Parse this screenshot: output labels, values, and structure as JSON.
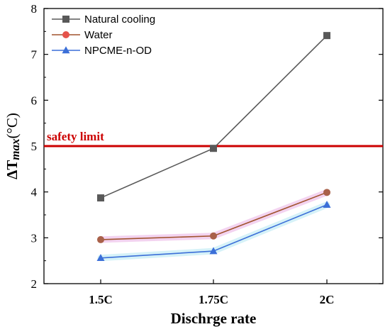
{
  "chart_data": {
    "type": "line",
    "categories": [
      "1.5C",
      "1.75C",
      "2C"
    ],
    "series": [
      {
        "name": "Natural cooling",
        "values": [
          3.87,
          4.95,
          7.41
        ],
        "color": "#595959",
        "marker": "square"
      },
      {
        "name": "Water",
        "values": [
          2.96,
          3.04,
          3.99
        ],
        "color": "#a0522d",
        "marker": "circle",
        "marker_color": "#e5534b"
      },
      {
        "name": "NPCME-n-OD",
        "values": [
          2.56,
          2.71,
          3.72
        ],
        "color": "#3b6fd8",
        "marker": "triangle"
      }
    ],
    "reference_line": {
      "label": "safety limit",
      "value": 5,
      "color": "#cc0000"
    },
    "xlabel": "Dischrge rate",
    "ylabel": {
      "main": "ΔT",
      "sub": "max",
      "unit": "(°C)"
    },
    "ylim": [
      2,
      8
    ],
    "yticks": [
      2,
      3,
      4,
      5,
      6,
      7,
      8
    ],
    "legend_position": "top-left",
    "grid": false
  }
}
